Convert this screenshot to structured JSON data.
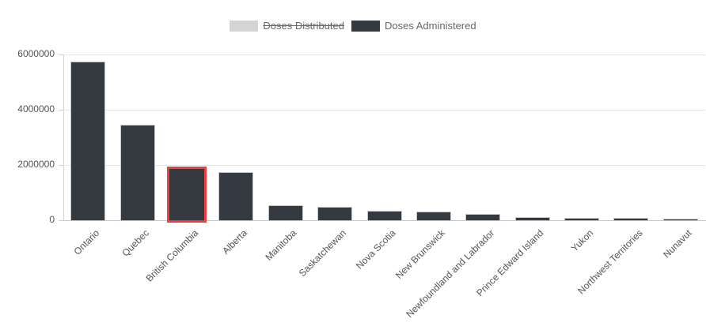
{
  "colors": {
    "bar_fill": "#343a40",
    "bar_border": "#c3c6c8",
    "highlight_border": "#f43b3d",
    "disabled_swatch": "#d4d4d4",
    "grid_line": "#e6e6e6",
    "axis_line": "#c5c5c5",
    "tick_text": "#545454",
    "legend_text": "#666666"
  },
  "legend": {
    "items": [
      {
        "label": "Doses Distributed",
        "swatch_color": "#d4d4d4",
        "disabled": true
      },
      {
        "label": "Doses Administered",
        "swatch_color": "#343a40",
        "disabled": false
      }
    ]
  },
  "chart_data": {
    "type": "bar",
    "title": "",
    "categories": [
      "Ontario",
      "Quebec",
      "British Columbia",
      "Alberta",
      "Manitoba",
      "Saskatchewan",
      "Nova Scotia",
      "New Brunswick",
      "Newfoundland and Labrador",
      "Prince Edward Island",
      "Yukon",
      "Northwest Territories",
      "Nunavut"
    ],
    "series": [
      {
        "name": "Doses Distributed",
        "hidden": true,
        "values": []
      },
      {
        "name": "Doses Administered",
        "hidden": false,
        "values": [
          5730000,
          3450000,
          1930000,
          1740000,
          535000,
          500000,
          355000,
          305000,
          220000,
          110000,
          85000,
          85000,
          55000
        ]
      }
    ],
    "ylim": [
      0,
      6000000
    ],
    "y_ticks": [
      0,
      2000000,
      4000000,
      6000000
    ],
    "y_tick_labels": [
      "0",
      "2000000",
      "4000000",
      "6000000"
    ],
    "grid": "horizontal",
    "legend_position": "top",
    "highlighted_category": "British Columbia"
  }
}
